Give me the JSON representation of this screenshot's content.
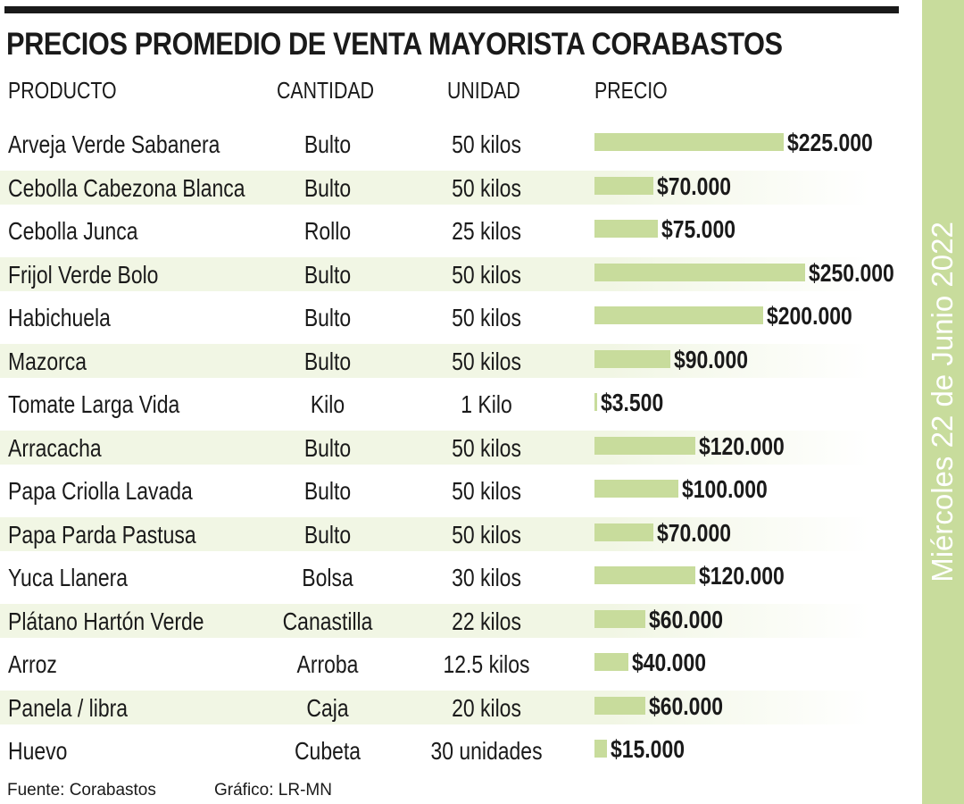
{
  "title": "PRECIOS PROMEDIO DE VENTA MAYORISTA  CORABASTOS",
  "date_label": "Miércoles 22 de Junio 2022",
  "headers": {
    "producto": "PRODUCTO",
    "cantidad": "CANTIDAD",
    "unidad": "UNIDAD",
    "precio": "PRECIO"
  },
  "footer": {
    "source": "Fuente: Corabastos",
    "graphic": "Gráfico: LR-MN"
  },
  "colors": {
    "bar": "#c8dc9c",
    "band": "#c8dc9c",
    "row_shade": "#f1f6e4"
  },
  "chart_data": {
    "type": "bar",
    "orientation": "horizontal",
    "title": "PRECIOS PROMEDIO DE VENTA MAYORISTA  CORABASTOS",
    "categories": [
      "Arveja Verde Sabanera",
      "Cebolla Cabezona Blanca",
      "Cebolla Junca",
      "Frijol Verde Bolo",
      "Habichuela",
      "Mazorca",
      "Tomate Larga Vida",
      "Arracacha",
      "Papa Criolla Lavada",
      "Papa Parda Pastusa",
      "Yuca Llanera",
      "Plátano Hartón Verde",
      "Arroz",
      "Panela / libra",
      "Huevo"
    ],
    "rows": [
      {
        "producto": "Arveja Verde Sabanera",
        "cantidad": "Bulto",
        "unidad": "50 kilos",
        "precio": 225000,
        "precio_label": "$225.000"
      },
      {
        "producto": "Cebolla Cabezona Blanca",
        "cantidad": "Bulto",
        "unidad": "50 kilos",
        "precio": 70000,
        "precio_label": "$70.000"
      },
      {
        "producto": "Cebolla Junca",
        "cantidad": "Rollo",
        "unidad": "25 kilos",
        "precio": 75000,
        "precio_label": "$75.000"
      },
      {
        "producto": "Frijol Verde Bolo",
        "cantidad": "Bulto",
        "unidad": "50 kilos",
        "precio": 250000,
        "precio_label": "$250.000"
      },
      {
        "producto": "Habichuela",
        "cantidad": "Bulto",
        "unidad": "50 kilos",
        "precio": 200000,
        "precio_label": "$200.000"
      },
      {
        "producto": "Mazorca",
        "cantidad": "Bulto",
        "unidad": "50 kilos",
        "precio": 90000,
        "precio_label": "$90.000"
      },
      {
        "producto": "Tomate Larga Vida",
        "cantidad": "Kilo",
        "unidad": "1 Kilo",
        "precio": 3500,
        "precio_label": "$3.500"
      },
      {
        "producto": "Arracacha",
        "cantidad": "Bulto",
        "unidad": "50 kilos",
        "precio": 120000,
        "precio_label": "$120.000"
      },
      {
        "producto": "Papa Criolla Lavada",
        "cantidad": "Bulto",
        "unidad": "50 kilos",
        "precio": 100000,
        "precio_label": "$100.000"
      },
      {
        "producto": "Papa Parda Pastusa",
        "cantidad": "Bulto",
        "unidad": "50 kilos",
        "precio": 70000,
        "precio_label": "$70.000"
      },
      {
        "producto": "Yuca Llanera",
        "cantidad": "Bolsa",
        "unidad": "30 kilos",
        "precio": 120000,
        "precio_label": "$120.000"
      },
      {
        "producto": "Plátano Hartón Verde",
        "cantidad": "Canastilla",
        "unidad": "22 kilos",
        "precio": 60000,
        "precio_label": "$60.000"
      },
      {
        "producto": "Arroz",
        "cantidad": "Arroba",
        "unidad": "12.5 kilos",
        "precio": 40000,
        "precio_label": "$40.000"
      },
      {
        "producto": "Panela / libra",
        "cantidad": "Caja",
        "unidad": "20 kilos",
        "precio": 60000,
        "precio_label": "$60.000"
      },
      {
        "producto": "Huevo",
        "cantidad": "Cubeta",
        "unidad": "30 unidades",
        "precio": 15000,
        "precio_label": "$15.000"
      }
    ],
    "xlim": [
      0,
      250000
    ],
    "grid": false,
    "legend": "none"
  }
}
